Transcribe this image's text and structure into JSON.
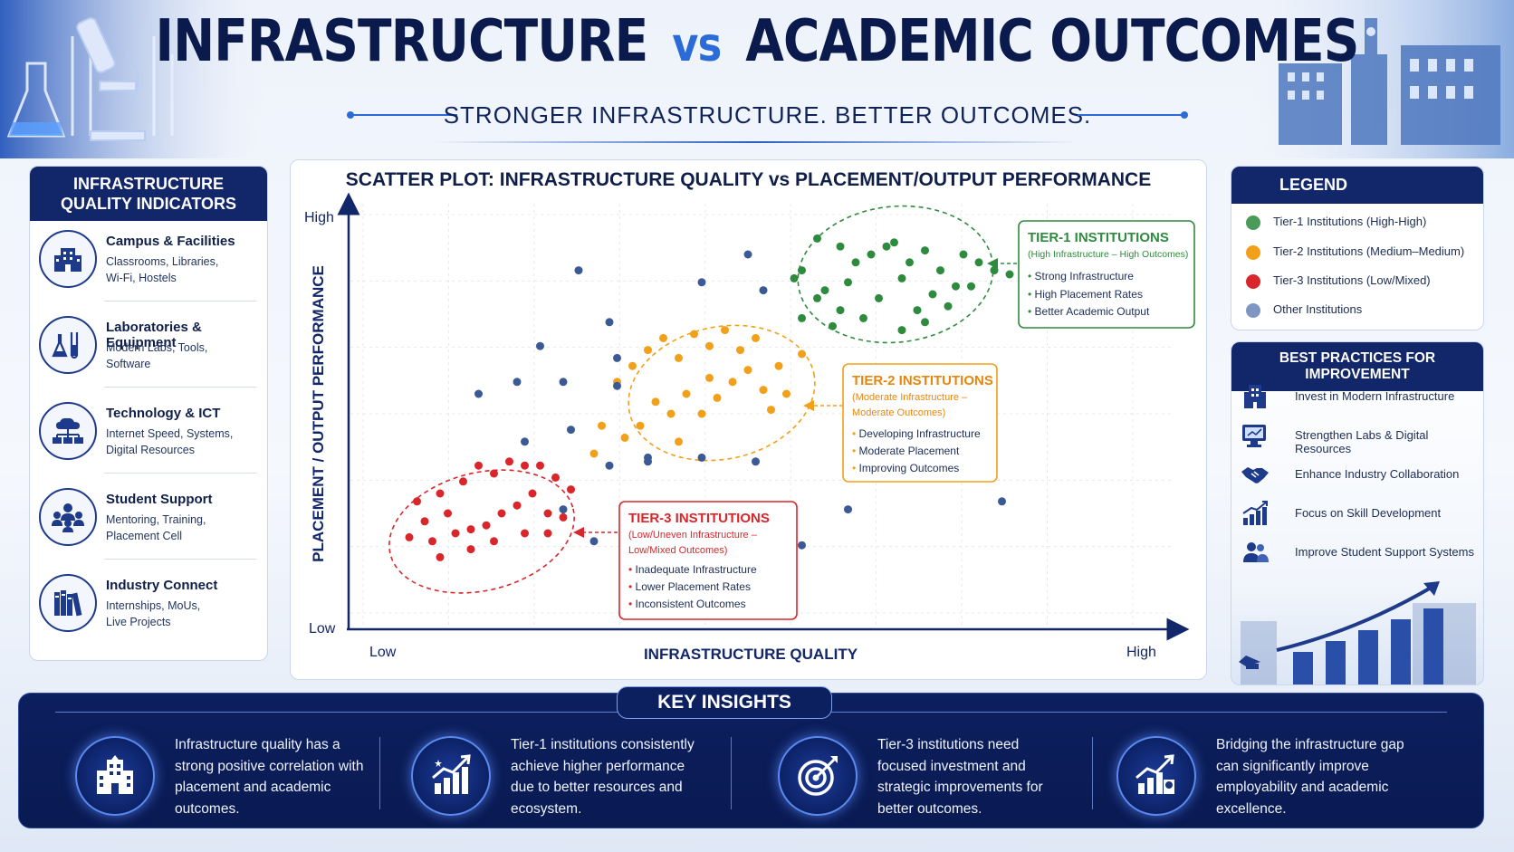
{
  "header": {
    "title_part1": "INFRASTRUCTURE",
    "title_vs": "vs",
    "title_part2": "ACADEMIC OUTCOMES",
    "subtitle": "STRONGER INFRASTRUCTURE. BETTER OUTCOMES."
  },
  "indicators": {
    "title_line1": "INFRASTRUCTURE",
    "title_line2": "QUALITY INDICATORS",
    "items": [
      {
        "title": "Campus & Facilities",
        "desc_line1": "Classrooms, Libraries,",
        "desc_line2": "Wi-Fi, Hostels",
        "icon": "building-icon"
      },
      {
        "title": "Laboratories & Equipment",
        "desc_line1": "Modern Labs, Tools,",
        "desc_line2": "Software",
        "icon": "flask-icon"
      },
      {
        "title": "Technology & ICT",
        "desc_line1": "Internet Speed, Systems,",
        "desc_line2": "Digital Resources",
        "icon": "cloud-network-icon"
      },
      {
        "title": "Student Support",
        "desc_line1": "Mentoring, Training,",
        "desc_line2": "Placement Cell",
        "icon": "people-group-icon"
      },
      {
        "title": "Industry Connect",
        "desc_line1": "Internships, MoUs,",
        "desc_line2": "Live Projects",
        "icon": "books-icon"
      }
    ]
  },
  "chart_data": {
    "type": "scatter",
    "title": "SCATTER PLOT: INFRASTRUCTURE QUALITY vs PLACEMENT/OUTPUT PERFORMANCE",
    "xlabel": "INFRASTRUCTURE QUALITY",
    "ylabel": "PLACEMENT / OUTPUT PERFORMANCE",
    "x_tick_low": "Low",
    "x_tick_high": "High",
    "y_tick_low": "Low",
    "y_tick_high": "High",
    "xlim": [
      0,
      100
    ],
    "ylim": [
      0,
      100
    ],
    "grid": true,
    "series": [
      {
        "name": "Tier-1 Institutions (High-High)",
        "color": "#2e8b3e",
        "points": [
          [
            59,
            94
          ],
          [
            62,
            92
          ],
          [
            64,
            88
          ],
          [
            57,
            86
          ],
          [
            60,
            81
          ],
          [
            63,
            83
          ],
          [
            66,
            90
          ],
          [
            69,
            93
          ],
          [
            71,
            88
          ],
          [
            73,
            91
          ],
          [
            75,
            86
          ],
          [
            78,
            90
          ],
          [
            80,
            88
          ],
          [
            77,
            82
          ],
          [
            74,
            80
          ],
          [
            70,
            84
          ],
          [
            67,
            79
          ],
          [
            65,
            74
          ],
          [
            62,
            76
          ],
          [
            59,
            79
          ],
          [
            56,
            84
          ],
          [
            72,
            76
          ],
          [
            76,
            77
          ],
          [
            79,
            82
          ],
          [
            82,
            86
          ],
          [
            84,
            85
          ],
          [
            68,
            92
          ],
          [
            61,
            72
          ],
          [
            70,
            71
          ],
          [
            73,
            73
          ],
          [
            57,
            74
          ]
        ]
      },
      {
        "name": "Tier-2 Institutions (Medium–Medium)",
        "color": "#f2a019",
        "points": [
          [
            33,
            58
          ],
          [
            35,
            62
          ],
          [
            37,
            66
          ],
          [
            39,
            69
          ],
          [
            41,
            64
          ],
          [
            43,
            70
          ],
          [
            45,
            67
          ],
          [
            47,
            71
          ],
          [
            49,
            66
          ],
          [
            51,
            69
          ],
          [
            50,
            61
          ],
          [
            48,
            58
          ],
          [
            46,
            54
          ],
          [
            44,
            50
          ],
          [
            42,
            55
          ],
          [
            40,
            50
          ],
          [
            38,
            53
          ],
          [
            36,
            47
          ],
          [
            34,
            44
          ],
          [
            31,
            47
          ],
          [
            52,
            56
          ],
          [
            54,
            62
          ],
          [
            55,
            55
          ],
          [
            53,
            51
          ],
          [
            57,
            65
          ],
          [
            45,
            59
          ],
          [
            41,
            43
          ],
          [
            30,
            40
          ]
        ]
      },
      {
        "name": "Tier-3 Institutions (Low/Mixed)",
        "color": "#d9262b",
        "points": [
          [
            7,
            28
          ],
          [
            10,
            30
          ],
          [
            13,
            33
          ],
          [
            15,
            37
          ],
          [
            17,
            35
          ],
          [
            19,
            38
          ],
          [
            21,
            37
          ],
          [
            23,
            37
          ],
          [
            25,
            34
          ],
          [
            22,
            30
          ],
          [
            20,
            27
          ],
          [
            18,
            25
          ],
          [
            16,
            22
          ],
          [
            14,
            21
          ],
          [
            12,
            20
          ],
          [
            9,
            18
          ],
          [
            11,
            25
          ],
          [
            8,
            23
          ],
          [
            6,
            19
          ],
          [
            27,
            31
          ],
          [
            26,
            24
          ],
          [
            24,
            20
          ],
          [
            21,
            20
          ],
          [
            17,
            18
          ],
          [
            10,
            14
          ],
          [
            14,
            16
          ],
          [
            24,
            25
          ]
        ]
      },
      {
        "name": "Other Institutions",
        "color": "#3b5a95",
        "points": [
          [
            28,
            86
          ],
          [
            44,
            83
          ],
          [
            50,
            90
          ],
          [
            52,
            81
          ],
          [
            32,
            73
          ],
          [
            23,
            67
          ],
          [
            33,
            64
          ],
          [
            20,
            58
          ],
          [
            26,
            58
          ],
          [
            15,
            55
          ],
          [
            21,
            43
          ],
          [
            27,
            46
          ],
          [
            32,
            37
          ],
          [
            37,
            38
          ],
          [
            44,
            39
          ],
          [
            51,
            38
          ],
          [
            26,
            26
          ],
          [
            63,
            26
          ],
          [
            83,
            28
          ],
          [
            57,
            17
          ],
          [
            33,
            57
          ],
          [
            37,
            39
          ],
          [
            30,
            18
          ]
        ]
      }
    ],
    "annotations": [
      {
        "tier": "tier1",
        "title": "TIER-1 INSTITUTIONS",
        "subtitle": "(High Infrastructure – High Outcomes)",
        "bullets": [
          "Strong Infrastructure",
          "High Placement Rates",
          "Better Academic Output"
        ],
        "color": "#2e8b3e"
      },
      {
        "tier": "tier2",
        "title": "TIER-2 INSTITUTIONS",
        "subtitle_line1": "(Moderate Infrastructure –",
        "subtitle_line2": "Moderate Outcomes)",
        "bullets": [
          "Developing Infrastructure",
          "Moderate Placement",
          "Improving Outcomes"
        ],
        "color": "#f2a019"
      },
      {
        "tier": "tier3",
        "title": "TIER-3 INSTITUTIONS",
        "subtitle_line1": "(Low/Uneven Infrastructure –",
        "subtitle_line2": "Low/Mixed Outcomes)",
        "bullets": [
          "Inadequate Infrastructure",
          "Lower Placement Rates",
          "Inconsistent Outcomes"
        ],
        "color": "#d9262b"
      }
    ]
  },
  "legend": {
    "title": "LEGEND",
    "items": [
      {
        "label": "Tier-1 Institutions (High-High)",
        "color": "#4a9b57"
      },
      {
        "label": "Tier-2 Institutions (Medium–Medium)",
        "color": "#f2a019"
      },
      {
        "label": "Tier-3 Institutions (Low/Mixed)",
        "color": "#d9262b"
      },
      {
        "label": "Other Institutions",
        "color": "#7f95c2"
      }
    ]
  },
  "best_practices": {
    "title": "BEST PRACTICES FOR IMPROVEMENT",
    "items": [
      {
        "label": "Invest in Modern Infrastructure",
        "icon": "building-icon"
      },
      {
        "label": "Strengthen Labs & Digital Resources",
        "icon": "computer-icon"
      },
      {
        "label": "Enhance Industry Collaboration",
        "icon": "handshake-icon"
      },
      {
        "label": "Focus on Skill Development",
        "icon": "growth-chart-icon"
      },
      {
        "label": "Improve Student Support Systems",
        "icon": "users-icon"
      }
    ]
  },
  "insights": {
    "title": "KEY INSIGHTS",
    "items": [
      {
        "text": "Infrastructure quality has a strong positive correlation with placement and academic outcomes.",
        "icon": "building-icon"
      },
      {
        "text": "Tier-1 institutions consistently achieve higher performance due to better resources and ecosystem.",
        "icon": "growth-chart-icon"
      },
      {
        "text": "Tier-3 institutions need focused investment and strategic improvements for better outcomes.",
        "icon": "target-icon"
      },
      {
        "text": "Bridging the infrastructure gap can significantly improve employability and academic excellence.",
        "icon": "growth-building-icon"
      }
    ]
  },
  "colors": {
    "navy": "#12266a",
    "accent_blue": "#2a6bd8",
    "insights_bg": "#0c1f5e"
  }
}
